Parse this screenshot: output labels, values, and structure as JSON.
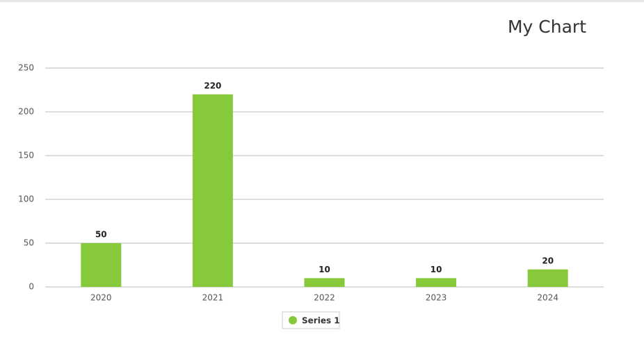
{
  "chart_data": {
    "type": "bar",
    "title": "My Chart",
    "categories": [
      "2020",
      "2021",
      "2022",
      "2023",
      "2024"
    ],
    "series": [
      {
        "name": "Series 1",
        "color": "#86c93a",
        "values": [
          50,
          220,
          10,
          10,
          20
        ]
      }
    ],
    "ylim": [
      0,
      250
    ],
    "yticks": [
      0,
      50,
      100,
      150,
      200,
      250
    ],
    "grid": true,
    "legend": "bottom",
    "data_labels": true
  }
}
